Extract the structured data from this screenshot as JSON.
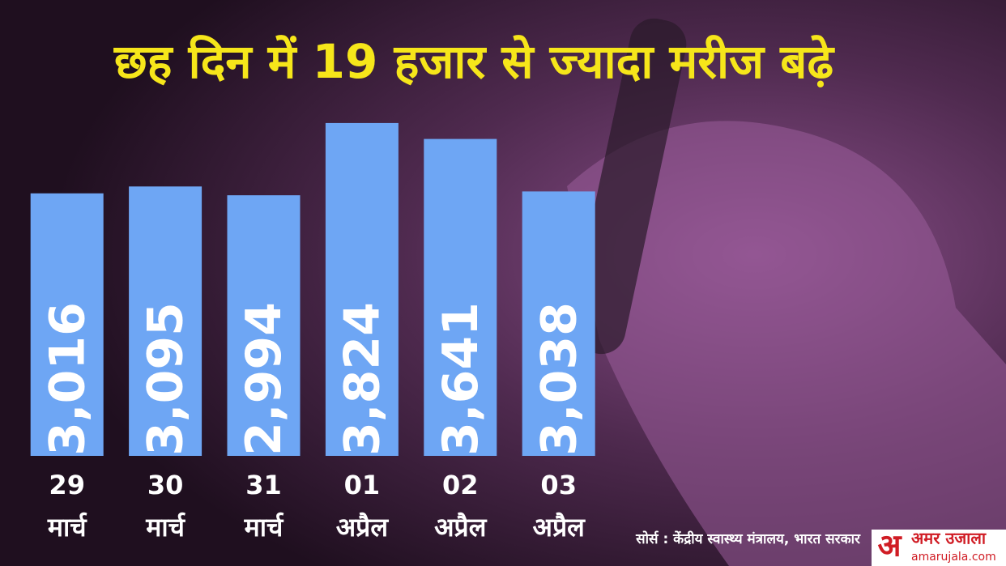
{
  "chart_data": {
    "type": "bar",
    "title": "छह दिन में 19 हजार से ज्यादा मरीज बढ़े",
    "categories": [
      [
        "29",
        "मार्च"
      ],
      [
        "30",
        "मार्च"
      ],
      [
        "31",
        "मार्च"
      ],
      [
        "01",
        "अप्रैल"
      ],
      [
        "02",
        "अप्रैल"
      ],
      [
        "03",
        "अप्रैल"
      ]
    ],
    "values": [
      3016,
      3095,
      2994,
      3824,
      3641,
      3038
    ],
    "value_labels": [
      "3,016",
      "3,095",
      "2,994",
      "3,824",
      "3,641",
      "3,038"
    ],
    "color": "#6ea6f4",
    "ylim": [
      0,
      4000
    ],
    "source": "सोर्स : केंद्रीय स्वास्थ्य मंत्रालय, भारत सरकार",
    "logo": {
      "mark": "अ",
      "name": "अमर उजाला",
      "site": "amarujala.com"
    }
  }
}
